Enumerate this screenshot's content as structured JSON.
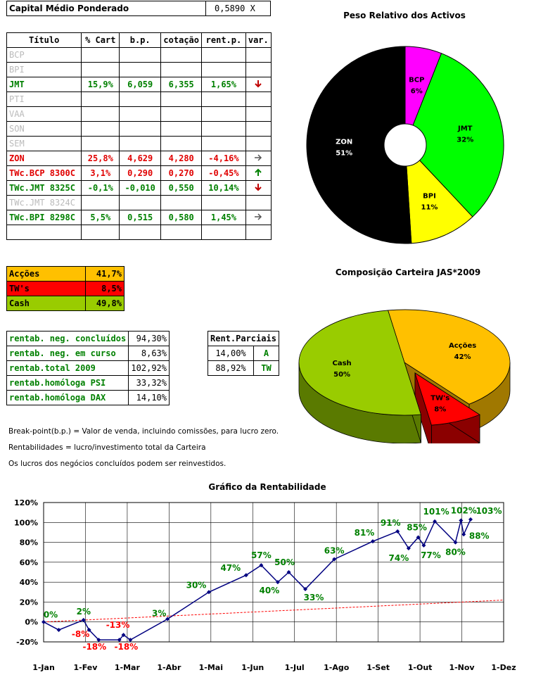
{
  "capital": {
    "label": "Capital Médio Ponderado",
    "value": "0,5890 X"
  },
  "portfolio": {
    "headers": [
      "Título",
      "% Cart",
      "b.p.",
      "cotação",
      "rent.p.",
      "var."
    ],
    "rows": [
      {
        "name": "BCP",
        "style": "gray",
        "cart": "",
        "bp": "",
        "cot": "",
        "rent": "",
        "var": ""
      },
      {
        "name": "BPI",
        "style": "gray",
        "cart": "",
        "bp": "",
        "cot": "",
        "rent": "",
        "var": ""
      },
      {
        "name": "JMT",
        "style": "green",
        "cart": "15,9%",
        "bp": "6,059",
        "cot": "6,355",
        "rent": "1,65%",
        "var": "down"
      },
      {
        "name": "PTI",
        "style": "gray",
        "cart": "",
        "bp": "",
        "cot": "",
        "rent": "",
        "var": ""
      },
      {
        "name": "VAA",
        "style": "gray",
        "cart": "",
        "bp": "",
        "cot": "",
        "rent": "",
        "var": ""
      },
      {
        "name": "SON",
        "style": "gray",
        "cart": "",
        "bp": "",
        "cot": "",
        "rent": "",
        "var": ""
      },
      {
        "name": "SEM",
        "style": "gray",
        "cart": "",
        "bp": "",
        "cot": "",
        "rent": "",
        "var": ""
      },
      {
        "name": "ZON",
        "style": "red",
        "cart": "25,8%",
        "bp": "4,629",
        "cot": "4,280",
        "rent": "-4,16%",
        "var": "right"
      },
      {
        "name": "TWc.BCP 8300C",
        "style": "red",
        "cart": "3,1%",
        "bp": "0,290",
        "cot": "0,270",
        "rent": "-0,45%",
        "var": "up"
      },
      {
        "name": "TWc.JMT 8325C",
        "style": "green",
        "cart": "-0,1%",
        "bp": "-0,010",
        "cot": "0,550",
        "rent": "10,14%",
        "var": "down"
      },
      {
        "name": "TWc.JMT 8324C",
        "style": "gray",
        "cart": "",
        "bp": "",
        "cot": "",
        "rent": "",
        "var": ""
      },
      {
        "name": "TWc.BPI 8298C",
        "style": "green",
        "cart": "5,5%",
        "bp": "0,515",
        "cot": "0,580",
        "rent": "1,45%",
        "var": "right"
      },
      {
        "name": "",
        "style": "gray",
        "cart": "",
        "bp": "",
        "cot": "",
        "rent": "",
        "var": ""
      }
    ]
  },
  "composition_table": [
    {
      "label": "Acções",
      "value": "41,7%",
      "color": "#ffc000"
    },
    {
      "label": "TW's",
      "value": "8,5%",
      "color": "#ff0000"
    },
    {
      "label": "Cash",
      "value": "49,8%",
      "color": "#99cc00"
    }
  ],
  "returns": [
    {
      "label": "rentab. neg. concluídos",
      "value": "94,30%"
    },
    {
      "label": "rentab. neg. em curso",
      "value": "8,63%"
    },
    {
      "label": "rentab.total 2009",
      "value": "102,92%"
    },
    {
      "label": "rentab.homóloga PSI",
      "value": "33,32%"
    },
    {
      "label": "rentab.homóloga DAX",
      "value": "14,10%"
    }
  ],
  "partial": {
    "header": "Rent.Parciais",
    "rows": [
      {
        "value": "14,00%",
        "tag": "A"
      },
      {
        "value": "88,92%",
        "tag": "TW"
      }
    ]
  },
  "notes": [
    "Break-point(b.p.) = Valor de venda, incluindo comissões, para lucro zero.",
    "Rentabilidades = lucro/investimento total da Carteira",
    "Os lucros dos negócios concluídos podem ser reinvestidos."
  ],
  "chart_data": [
    {
      "type": "pie",
      "title": "Peso Relativo dos Activos",
      "slices": [
        {
          "label": "BCP",
          "value": 6,
          "text": "6%",
          "color": "#ff00ff"
        },
        {
          "label": "JMT",
          "value": 32,
          "text": "32%",
          "color": "#00ff00"
        },
        {
          "label": "BPI",
          "value": 11,
          "text": "11%",
          "color": "#ffff00"
        },
        {
          "label": "ZON",
          "value": 51,
          "text": "51%",
          "color": "#000000"
        }
      ]
    },
    {
      "type": "pie",
      "title": "Composição Carteira JAS*2009",
      "slices": [
        {
          "label": "Acções",
          "value": 42,
          "text": "42%",
          "color": "#ffc000"
        },
        {
          "label": "TW's",
          "value": 8,
          "text": "8%",
          "color": "#ff0000"
        },
        {
          "label": "Cash",
          "value": 50,
          "text": "50%",
          "color": "#99cc00"
        }
      ]
    },
    {
      "type": "line",
      "title": "Gráfico da Rentabilidade",
      "ylim": [
        -20,
        120
      ],
      "yticks": [
        "-20%",
        "0%",
        "20%",
        "40%",
        "60%",
        "80%",
        "100%",
        "120%"
      ],
      "xticks": [
        "1-Jan",
        "1-Fev",
        "1-Mar",
        "1-Abr",
        "1-Mai",
        "1-Jun",
        "1-Jul",
        "1-Ago",
        "1-Set",
        "1-Out",
        "1-Nov",
        "1-Dez"
      ],
      "series": [
        {
          "color": "#000080",
          "points": [
            {
              "x": "2009-01-01",
              "y": 0,
              "label": "0%"
            },
            {
              "x": "2009-01-12",
              "y": -8,
              "label": ""
            },
            {
              "x": "2009-01-30",
              "y": 2,
              "label": "2%"
            },
            {
              "x": "2009-02-03",
              "y": -8,
              "label": "-8%"
            },
            {
              "x": "2009-02-10",
              "y": -18,
              "label": "-18%"
            },
            {
              "x": "2009-02-25",
              "y": -18,
              "label": ""
            },
            {
              "x": "2009-02-28",
              "y": -13,
              "label": "-13%"
            },
            {
              "x": "2009-03-05",
              "y": -18,
              "label": "-18%"
            },
            {
              "x": "2009-04-01",
              "y": 3,
              "label": "3%"
            },
            {
              "x": "2009-05-01",
              "y": 30,
              "label": "30%"
            },
            {
              "x": "2009-05-28",
              "y": 47,
              "label": "47%"
            },
            {
              "x": "2009-06-08",
              "y": 57,
              "label": "57%"
            },
            {
              "x": "2009-06-20",
              "y": 40,
              "label": "40%"
            },
            {
              "x": "2009-06-28",
              "y": 50,
              "label": "50%"
            },
            {
              "x": "2009-07-10",
              "y": 33,
              "label": "33%"
            },
            {
              "x": "2009-07-31",
              "y": 63,
              "label": "63%"
            },
            {
              "x": "2009-08-28",
              "y": 81,
              "label": "81%"
            },
            {
              "x": "2009-09-15",
              "y": 91,
              "label": "91%"
            },
            {
              "x": "2009-09-23",
              "y": 74,
              "label": "74%"
            },
            {
              "x": "2009-09-30",
              "y": 85,
              "label": "85%"
            },
            {
              "x": "2009-10-04",
              "y": 77,
              "label": "77%"
            },
            {
              "x": "2009-10-12",
              "y": 101,
              "label": "101%"
            },
            {
              "x": "2009-10-27",
              "y": 80,
              "label": "80%"
            },
            {
              "x": "2009-10-31",
              "y": 102,
              "label": "102%"
            },
            {
              "x": "2009-11-02",
              "y": 88,
              "label": "88%"
            },
            {
              "x": "2009-11-07",
              "y": 103,
              "label": "103%"
            }
          ]
        }
      ],
      "trendline": {
        "color": "#ff0000",
        "from": {
          "x": "2009-01-01",
          "y": 0
        },
        "to": {
          "x": "2009-12-01",
          "y": 22
        }
      },
      "label_color": "#008000",
      "neg_label_color": "#ff0000"
    }
  ]
}
